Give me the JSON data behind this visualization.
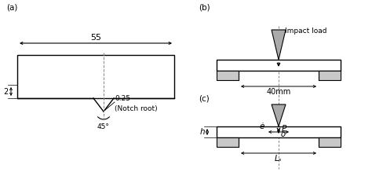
{
  "bg_color": "#ffffff",
  "line_color": "#000000",
  "gray_color": "#c8c8c8",
  "label_a": "(a)",
  "label_b": "(b)",
  "label_c": "(c)",
  "dim_55": "55",
  "dim_2": "2",
  "dim_notch_line1": "0.25",
  "dim_notch_line2": "(Notch root)",
  "dim_45": "45°",
  "dim_40": "40mm",
  "label_impact": "Impact load",
  "label_P": "P",
  "label_h": "h",
  "label_eps": "ė",
  "label_delta": "δ",
  "label_Ls": "Lₛ"
}
